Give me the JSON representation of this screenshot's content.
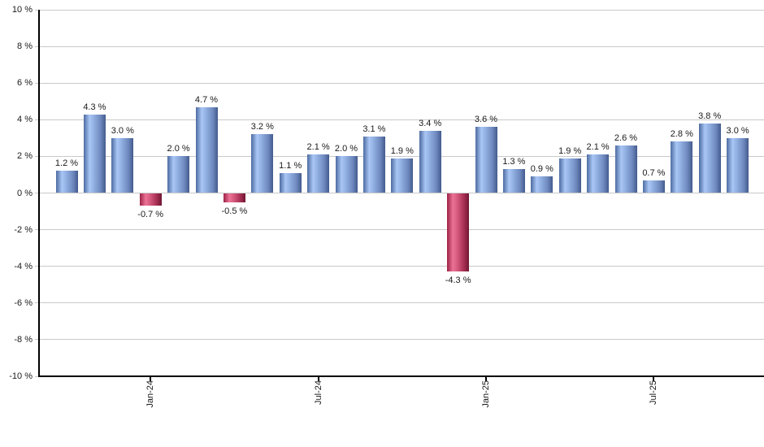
{
  "chart_data": {
    "type": "bar",
    "title": "",
    "xlabel": "",
    "ylabel": "",
    "ylim": [
      -10,
      10
    ],
    "grid": true,
    "legend_position": "none",
    "values": [
      1.2,
      4.3,
      3.0,
      -0.7,
      2.0,
      4.7,
      -0.5,
      3.2,
      1.1,
      2.1,
      2.0,
      3.1,
      1.9,
      3.4,
      -4.3,
      3.6,
      1.3,
      0.9,
      1.9,
      2.1,
      2.6,
      0.7,
      2.8,
      3.8,
      3.0
    ],
    "bar_labels": [
      "1.2 %",
      "4.3 %",
      "3.0 %",
      "-0.7 %",
      "2.0 %",
      "4.7 %",
      "-0.5 %",
      "3.2 %",
      "1.1 %",
      "2.1 %",
      "2.0 %",
      "3.1 %",
      "1.9 %",
      "3.4 %",
      "-4.3 %",
      "3.6 %",
      "1.3 %",
      "0.9 %",
      "1.9 %",
      "2.1 %",
      "2.6 %",
      "0.7 %",
      "2.8 %",
      "3.8 %",
      "3.0 %"
    ],
    "y_ticks": [
      {
        "value": 10,
        "label": "10 %"
      },
      {
        "value": 8,
        "label": "8 %"
      },
      {
        "value": 6,
        "label": "6 %"
      },
      {
        "value": 4,
        "label": "4 %"
      },
      {
        "value": 2,
        "label": "2 %"
      },
      {
        "value": 0,
        "label": "0 %"
      },
      {
        "value": -2,
        "label": "-2 %"
      },
      {
        "value": -4,
        "label": "-4 %"
      },
      {
        "value": -6,
        "label": "-6 %"
      },
      {
        "value": -8,
        "label": "-8 %"
      },
      {
        "value": -10,
        "label": "-10 %"
      }
    ],
    "x_ticks": [
      {
        "bar_index": 3,
        "label": "Jan-24"
      },
      {
        "bar_index": 9,
        "label": "Jul-24"
      },
      {
        "bar_index": 15,
        "label": "Jan-25"
      },
      {
        "bar_index": 21,
        "label": "Jul-25"
      }
    ],
    "colors": {
      "positive_bar_gradient": [
        "#4d6ba1",
        "#a9c6f5",
        "#93b1e3",
        "#6d88bd",
        "#435a8d"
      ],
      "negative_bar_gradient": [
        "#9c2145",
        "#ec7396",
        "#d85c80",
        "#a52e52",
        "#701733"
      ],
      "grid_line": "#c9c9c9",
      "axis_line": "#000000",
      "label_text": "#1a1a1a",
      "background": "#ffffff"
    }
  }
}
